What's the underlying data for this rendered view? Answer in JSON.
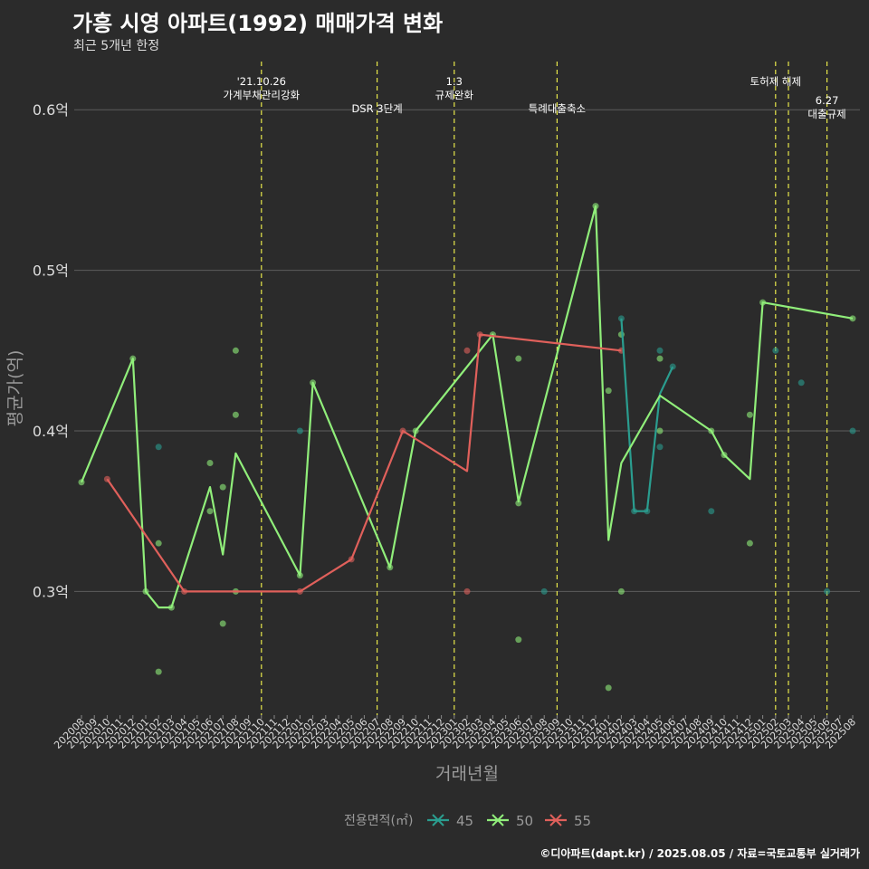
{
  "title": "가흥 시영 아파트(1992) 매매가격 변화",
  "subtitle": "최근 5개년 한정",
  "caption": "©디아파트(dapt.kr) / 2025.08.05 / 자료=국토교통부 실거래가",
  "chart_data": {
    "type": "line",
    "xlabel": "거래년월",
    "ylabel": "평균가(억)",
    "ylim": [
      0.223,
      0.63
    ],
    "y_ticks": [
      0.3,
      0.4,
      0.5,
      0.6
    ],
    "y_tick_labels": [
      "0.3억",
      "0.4억",
      "0.5억",
      "0.6억"
    ],
    "x_categories": [
      "202008",
      "202009",
      "202010",
      "202011",
      "202012",
      "202101",
      "202102",
      "202103",
      "202104",
      "202105",
      "202106",
      "202107",
      "202108",
      "202109",
      "202110",
      "202111",
      "202112",
      "202201",
      "202202",
      "202203",
      "202204",
      "202205",
      "202206",
      "202207",
      "202208",
      "202209",
      "202210",
      "202211",
      "202212",
      "202301",
      "202302",
      "202303",
      "202304",
      "202305",
      "202306",
      "202307",
      "202308",
      "202309",
      "202310",
      "202311",
      "202312",
      "202401",
      "202402",
      "202403",
      "202404",
      "202405",
      "202406",
      "202407",
      "202408",
      "202409",
      "202410",
      "202411",
      "202412",
      "202501",
      "202502",
      "202503",
      "202504",
      "202505",
      "202506",
      "202507",
      "202508"
    ],
    "legend": {
      "title": "전용면적(㎡)",
      "position": "bottom",
      "entries": [
        "45",
        "50",
        "55"
      ]
    },
    "colors": {
      "45": "#2a9d8f",
      "50": "#90ee7a",
      "55": "#e0605b",
      "annotation": "#e8e84a"
    },
    "annotations": [
      {
        "x": "202110",
        "lines": [
          "'21.10.26",
          "가계부채관리강화"
        ],
        "row": "upper"
      },
      {
        "x": "202207",
        "lines": [
          "DSR 3단계"
        ],
        "row": "lower"
      },
      {
        "x": "202301",
        "lines": [
          "1.3",
          "규제완화"
        ],
        "row": "upper"
      },
      {
        "x": "202309",
        "lines": [
          "특례대출축소"
        ],
        "row": "lower"
      },
      {
        "x": "202502",
        "lines": [
          "토허제 해제"
        ],
        "row": "upper"
      },
      {
        "x": "202503",
        "lines": [],
        "row": "upper"
      },
      {
        "x": "202506",
        "lines": [
          "6.27",
          "대출규제"
        ],
        "row": "lowest"
      }
    ],
    "series": [
      {
        "name": "45",
        "line": [
          [
            "202402",
            0.47
          ],
          [
            "202403",
            0.35
          ],
          [
            "202404",
            0.35
          ],
          [
            "202405",
            0.423
          ],
          [
            "202406",
            0.44
          ]
        ],
        "points": [
          [
            "202102",
            0.39
          ],
          [
            "202201",
            0.4
          ],
          [
            "202308",
            0.3
          ],
          [
            "202402",
            0.47
          ],
          [
            "202403",
            0.35
          ],
          [
            "202404",
            0.35
          ],
          [
            "202405",
            0.45
          ],
          [
            "202405",
            0.39
          ],
          [
            "202406",
            0.44
          ],
          [
            "202409",
            0.35
          ],
          [
            "202502",
            0.45
          ],
          [
            "202504",
            0.43
          ],
          [
            "202506",
            0.3
          ],
          [
            "202508",
            0.4
          ]
        ]
      },
      {
        "name": "50",
        "line": [
          [
            "202008",
            0.368
          ],
          [
            "202012",
            0.445
          ],
          [
            "202101",
            0.3
          ],
          [
            "202102",
            0.29
          ],
          [
            "202103",
            0.29
          ],
          [
            "202106",
            0.365
          ],
          [
            "202107",
            0.323
          ],
          [
            "202108",
            0.386
          ],
          [
            "202201",
            0.31
          ],
          [
            "202202",
            0.43
          ],
          [
            "202208",
            0.315
          ],
          [
            "202210",
            0.4
          ],
          [
            "202304",
            0.46
          ],
          [
            "202306",
            0.356
          ],
          [
            "202312",
            0.54
          ],
          [
            "202401",
            0.332
          ],
          [
            "202402",
            0.38
          ],
          [
            "202405",
            0.422
          ],
          [
            "202409",
            0.4
          ],
          [
            "202410",
            0.385
          ],
          [
            "202412",
            0.37
          ],
          [
            "202501",
            0.48
          ],
          [
            "202508",
            0.47
          ]
        ],
        "points": [
          [
            "202008",
            0.368
          ],
          [
            "202012",
            0.445
          ],
          [
            "202101",
            0.3
          ],
          [
            "202102",
            0.25
          ],
          [
            "202102",
            0.33
          ],
          [
            "202103",
            0.29
          ],
          [
            "202106",
            0.38
          ],
          [
            "202106",
            0.35
          ],
          [
            "202107",
            0.365
          ],
          [
            "202107",
            0.28
          ],
          [
            "202108",
            0.45
          ],
          [
            "202108",
            0.41
          ],
          [
            "202108",
            0.3
          ],
          [
            "202201",
            0.31
          ],
          [
            "202202",
            0.43
          ],
          [
            "202208",
            0.315
          ],
          [
            "202210",
            0.4
          ],
          [
            "202304",
            0.46
          ],
          [
            "202306",
            0.445
          ],
          [
            "202306",
            0.355
          ],
          [
            "202306",
            0.27
          ],
          [
            "202312",
            0.54
          ],
          [
            "202401",
            0.425
          ],
          [
            "202401",
            0.24
          ],
          [
            "202402",
            0.46
          ],
          [
            "202402",
            0.3
          ],
          [
            "202405",
            0.445
          ],
          [
            "202405",
            0.4
          ],
          [
            "202409",
            0.4
          ],
          [
            "202410",
            0.385
          ],
          [
            "202412",
            0.41
          ],
          [
            "202412",
            0.33
          ],
          [
            "202501",
            0.48
          ],
          [
            "202508",
            0.47
          ]
        ]
      },
      {
        "name": "55",
        "line": [
          [
            "202010",
            0.37
          ],
          [
            "202104",
            0.3
          ],
          [
            "202201",
            0.3
          ],
          [
            "202205",
            0.32
          ],
          [
            "202209",
            0.4
          ],
          [
            "202302",
            0.375
          ],
          [
            "202303",
            0.46
          ],
          [
            "202402",
            0.45
          ]
        ],
        "points": [
          [
            "202010",
            0.37
          ],
          [
            "202104",
            0.3
          ],
          [
            "202201",
            0.3
          ],
          [
            "202205",
            0.32
          ],
          [
            "202209",
            0.4
          ],
          [
            "202302",
            0.45
          ],
          [
            "202302",
            0.3
          ],
          [
            "202303",
            0.46
          ],
          [
            "202402",
            0.45
          ]
        ]
      }
    ]
  }
}
